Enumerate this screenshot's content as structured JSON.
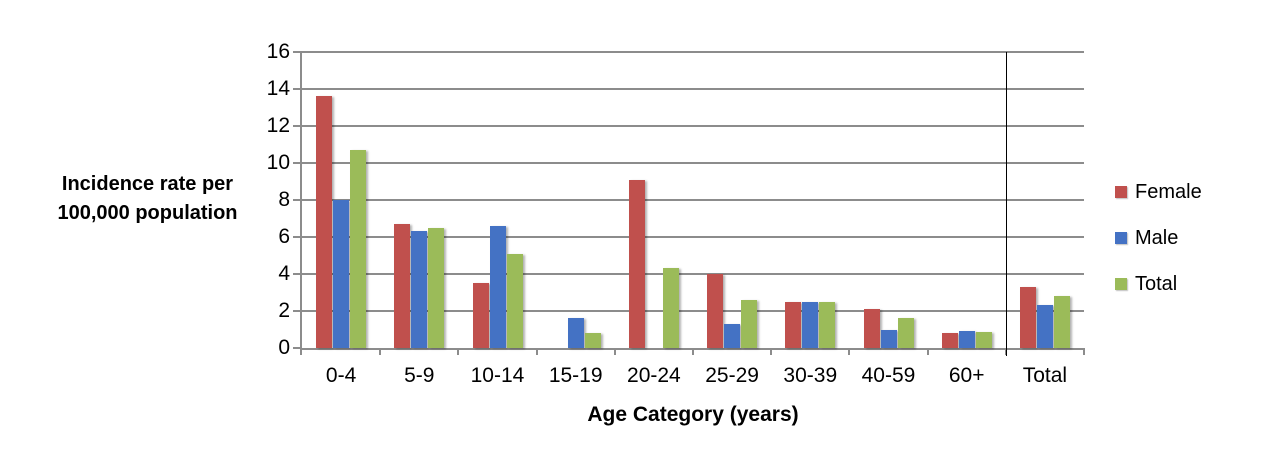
{
  "chart_data": {
    "type": "bar",
    "xlabel": "Age Category (years)",
    "ylabel": "Incidence rate per\n100,000 population",
    "categories": [
      "0-4",
      "5-9",
      "10-14",
      "15-19",
      "20-24",
      "25-29",
      "30-39",
      "40-59",
      "60+",
      "Total"
    ],
    "series": [
      {
        "name": "Female",
        "color": "#C0504D",
        "values": [
          13.6,
          6.7,
          3.5,
          0,
          9.1,
          4.0,
          2.5,
          2.1,
          0.8,
          3.3
        ]
      },
      {
        "name": "Male",
        "color": "#4472C4",
        "values": [
          8.0,
          6.3,
          6.6,
          1.6,
          0,
          1.3,
          2.5,
          1.0,
          0.9,
          2.3
        ]
      },
      {
        "name": "Total",
        "color": "#9BBB59",
        "values": [
          10.7,
          6.5,
          5.1,
          0.8,
          4.3,
          2.6,
          2.5,
          1.6,
          0.85,
          2.8
        ]
      }
    ],
    "ylim": [
      0,
      16
    ],
    "yticks": [
      0,
      2,
      4,
      6,
      8,
      10,
      12,
      14,
      16
    ],
    "grid": true,
    "legend_position": "right",
    "separator_before_category": "Total",
    "axis_color": "#8C8C8C",
    "gridline_color": "#8C8C8C",
    "separator_color": "#000000",
    "text_color": "#000000",
    "background": "#FFFFFF"
  }
}
